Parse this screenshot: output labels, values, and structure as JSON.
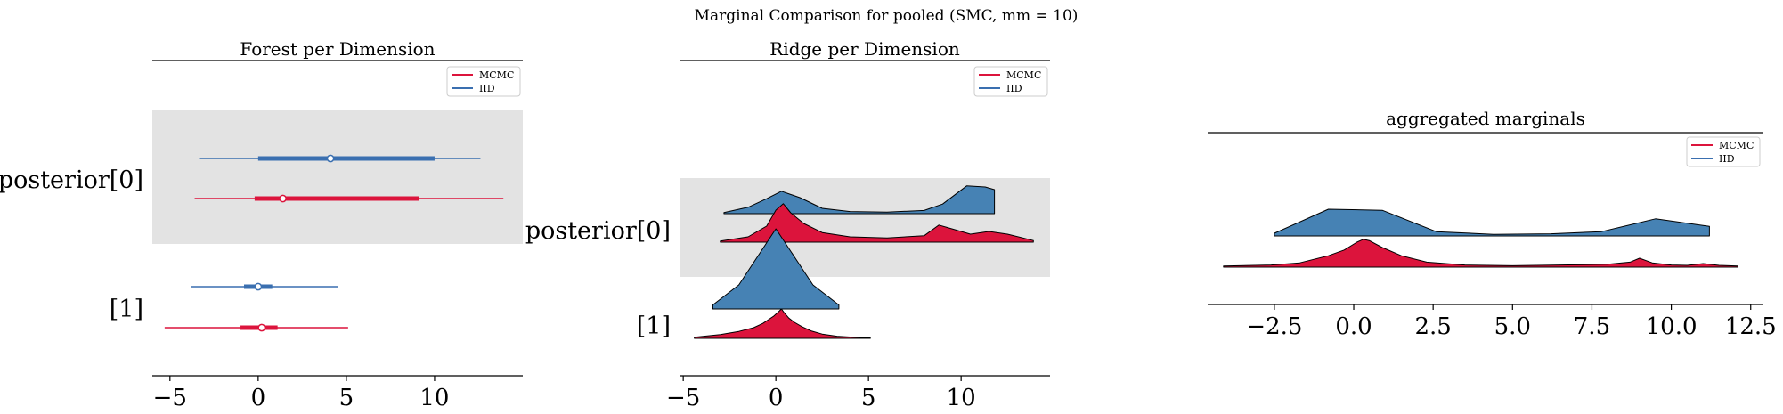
{
  "suptitle": "Marginal Comparison for pooled (SMC, mm = 10)",
  "colors": {
    "MCMC": "#dc143c",
    "IID": "#4682b4",
    "IID_line": "#3a6fb0",
    "band": "#e3e3e3"
  },
  "chart_data": [
    {
      "type": "forest",
      "title": "Forest per Dimension",
      "legend": [
        "MCMC",
        "IID"
      ],
      "legend_position": "top-right",
      "y_labels": [
        "posterior[0]",
        "[1]"
      ],
      "xlim": [
        -6,
        15
      ],
      "x_ticks": [
        -5,
        0,
        5,
        10
      ],
      "x_tick_labels": [
        "−5",
        "0",
        "5",
        "10"
      ],
      "rows": [
        {
          "name": "posterior[0]",
          "series": "IID",
          "median": 4.1,
          "hdi_50": [
            0,
            10
          ],
          "hdi_94": [
            -3.3,
            12.6
          ]
        },
        {
          "name": "posterior[0]",
          "series": "MCMC",
          "median": 1.4,
          "hdi_50": [
            -0.2,
            9.1
          ],
          "hdi_94": [
            -3.6,
            13.9
          ]
        },
        {
          "name": "[1]",
          "series": "IID",
          "median": 0,
          "hdi_50": [
            -0.8,
            0.8
          ],
          "hdi_94": [
            -3.8,
            4.5
          ]
        },
        {
          "name": "[1]",
          "series": "MCMC",
          "median": 0.2,
          "hdi_50": [
            -1,
            1.1
          ],
          "hdi_94": [
            -5.3,
            5.1
          ]
        }
      ]
    },
    {
      "type": "ridge",
      "title": "Ridge per Dimension",
      "legend": [
        "MCMC",
        "IID"
      ],
      "legend_position": "top-right",
      "y_labels": [
        "posterior[0]",
        "[1]"
      ],
      "xlim": [
        -5.2,
        14.8
      ],
      "x_ticks": [
        -5,
        0,
        5,
        10
      ],
      "x_tick_labels": [
        "−5",
        "0",
        "5",
        "10"
      ],
      "ridges": [
        {
          "name": "posterior[0]",
          "series": "IID",
          "x": [
            -2.8,
            -1.5,
            -0.5,
            0.3,
            1.3,
            2.5,
            4,
            6,
            8,
            9,
            10.3,
            11.3,
            11.8
          ],
          "y": [
            0.02,
            0.12,
            0.28,
            0.42,
            0.3,
            0.1,
            0.04,
            0.03,
            0.06,
            0.18,
            0.52,
            0.5,
            0.45
          ]
        },
        {
          "name": "posterior[0]",
          "series": "MCMC",
          "x": [
            -3,
            -1.5,
            -0.5,
            0,
            0.4,
            0.8,
            1.5,
            2.5,
            4,
            6,
            8,
            8.8,
            9.5,
            10.5,
            11.5,
            12.5,
            13.9
          ],
          "y": [
            0.02,
            0.1,
            0.3,
            0.6,
            0.72,
            0.55,
            0.35,
            0.18,
            0.1,
            0.08,
            0.12,
            0.32,
            0.25,
            0.15,
            0.2,
            0.15,
            0.03
          ]
        },
        {
          "name": "[1]",
          "series": "IID",
          "x": [
            -3.4,
            -2,
            -1,
            0,
            1,
            2,
            3.4
          ],
          "y": [
            0.05,
            0.3,
            0.65,
            1.0,
            0.65,
            0.3,
            0.05
          ]
        },
        {
          "name": "[1]",
          "series": "MCMC",
          "x": [
            -4.4,
            -3,
            -2,
            -1.2,
            -0.7,
            -0.4,
            -0.1,
            0.15,
            0.3,
            0.45,
            0.7,
            1,
            1.4,
            1.9,
            2.5,
            3.3,
            4.2,
            5.1
          ],
          "y": [
            0.02,
            0.07,
            0.13,
            0.2,
            0.28,
            0.35,
            0.42,
            0.5,
            0.55,
            0.48,
            0.38,
            0.3,
            0.22,
            0.14,
            0.08,
            0.04,
            0.02,
            0.01
          ]
        }
      ]
    },
    {
      "type": "ridge",
      "title": "aggregated marginals",
      "legend": [
        "MCMC",
        "IID"
      ],
      "legend_position": "top-right",
      "xlim": [
        -4.6,
        12.9
      ],
      "x_ticks": [
        -2.5,
        0,
        2.5,
        5,
        7.5,
        10,
        12.5
      ],
      "x_tick_labels": [
        "−2.5",
        "0.0",
        "2.5",
        "5.0",
        "7.5",
        "10.0",
        "12.5"
      ],
      "ridges": [
        {
          "series": "IID",
          "x": [
            -2.5,
            -0.8,
            0.9,
            2.6,
            4.4,
            6.2,
            7.8,
            9.5,
            11.2
          ],
          "y": [
            0.05,
            0.5,
            0.48,
            0.08,
            0.03,
            0.04,
            0.08,
            0.32,
            0.18
          ]
        },
        {
          "series": "MCMC",
          "x": [
            -4.1,
            -2.6,
            -1.7,
            -0.8,
            -0.3,
            0.1,
            0.3,
            0.5,
            0.9,
            1.5,
            2.3,
            3.5,
            5,
            6.5,
            8,
            8.7,
            9,
            9.4,
            10,
            10.5,
            11,
            11.5,
            12.1
          ],
          "y": [
            0.03,
            0.06,
            0.12,
            0.32,
            0.48,
            0.7,
            0.78,
            0.74,
            0.55,
            0.32,
            0.14,
            0.06,
            0.04,
            0.06,
            0.08,
            0.14,
            0.25,
            0.12,
            0.06,
            0.05,
            0.1,
            0.05,
            0.03
          ]
        }
      ]
    }
  ]
}
